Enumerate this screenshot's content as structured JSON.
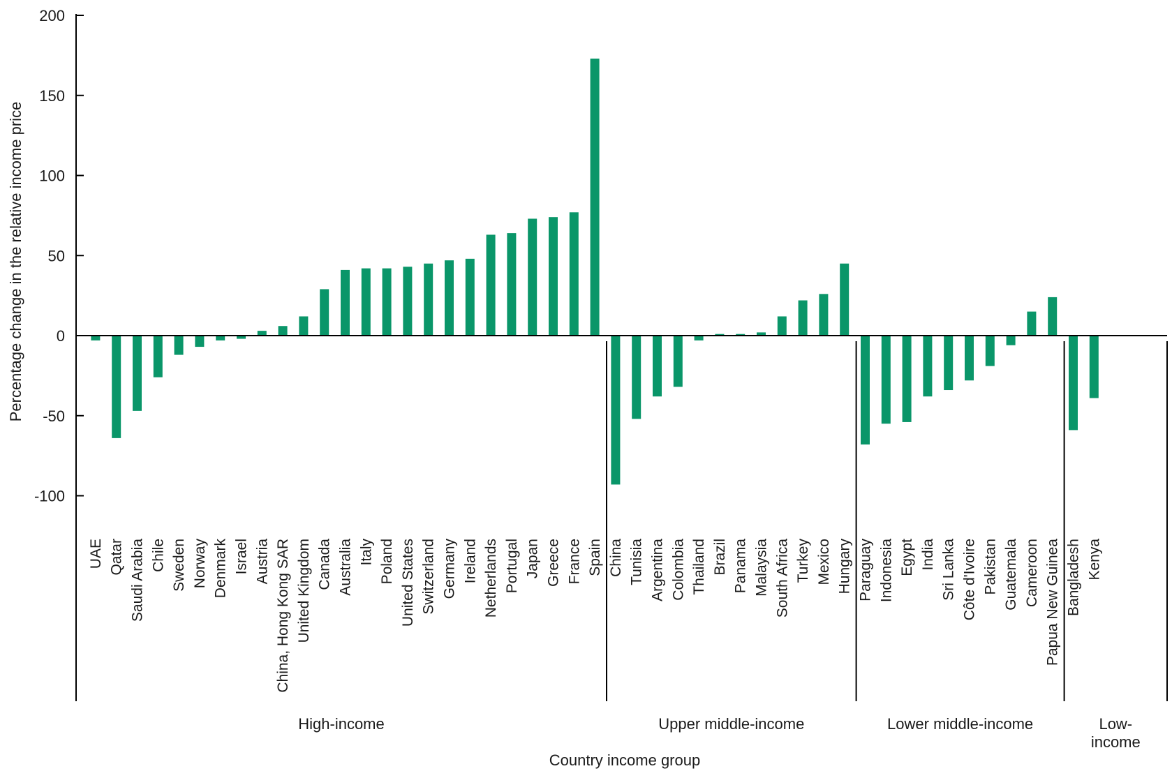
{
  "chart_data": {
    "type": "bar",
    "title": "",
    "xlabel": "Country income group",
    "ylabel": "Percentage change in the relative income price",
    "ylim": [
      -100,
      200
    ],
    "yticks": [
      200,
      150,
      100,
      50,
      0,
      -50,
      -100
    ],
    "grid": false,
    "legend": "none",
    "bar_color": "#0a9669",
    "categories": [
      "UAE",
      "Qatar",
      "Saudi Arabia",
      "Chile",
      "Sweden",
      "Norway",
      "Denmark",
      "Israel",
      "Austria",
      "China, Hong Kong SAR",
      "United Kingdom",
      "Canada",
      "Australia",
      "Italy",
      "Poland",
      "United States",
      "Switzerland",
      "Germany",
      "Ireland",
      "Netherlands",
      "Portugal",
      "Japan",
      "Greece",
      "France",
      "Spain",
      "China",
      "Tunisia",
      "Argentina",
      "Colombia",
      "Thailand",
      "Brazil",
      "Panama",
      "Malaysia",
      "South Africa",
      "Turkey",
      "Mexico",
      "Hungary",
      "Paraguay",
      "Indonesia",
      "Egypt",
      "India",
      "Sri Lanka",
      "Côte d'Ivoire",
      "Pakistan",
      "Guatemala",
      "Cameroon",
      "Papua New Guinea",
      "Bangladesh",
      "Kenya"
    ],
    "values": [
      -3,
      -64,
      -47,
      -26,
      -12,
      -7,
      -3,
      -2,
      3,
      6,
      12,
      29,
      41,
      42,
      42,
      43,
      45,
      47,
      48,
      63,
      64,
      73,
      74,
      77,
      173,
      -93,
      -52,
      -38,
      -32,
      -3,
      1,
      1,
      2,
      12,
      22,
      26,
      45,
      -68,
      -55,
      -54,
      -38,
      -34,
      -28,
      -19,
      -6,
      15,
      24,
      -59,
      -39
    ],
    "groups": [
      {
        "label": "High-income",
        "count": 25
      },
      {
        "label": "Upper middle-income",
        "count": 12
      },
      {
        "label": "Lower middle-income",
        "count": 10
      },
      {
        "label": "Low-\nincome",
        "count": 2
      }
    ]
  }
}
